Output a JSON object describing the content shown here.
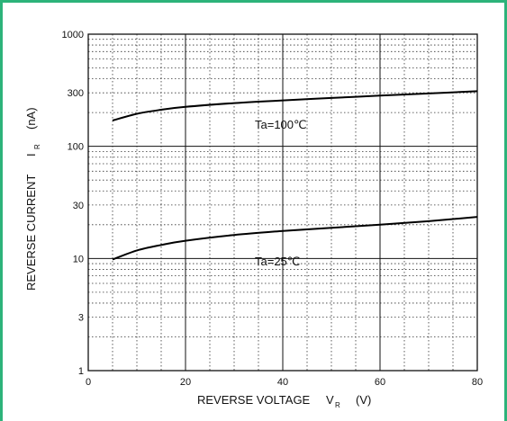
{
  "chart_data": {
    "type": "line",
    "title": "",
    "xlabel": "REVERSE VOLTAGE",
    "xlabel_sub": "R",
    "xlabel_prefix": "V",
    "xlabel_unit": "(V)",
    "ylabel": "REVERSE CURRENT",
    "ylabel_prefix": "I",
    "ylabel_sub": "R",
    "ylabel_unit": "(nA)",
    "xlim": [
      0,
      80
    ],
    "ylim": [
      1,
      1000
    ],
    "y_scale": "log",
    "x_ticks": [
      "0",
      "20",
      "40",
      "60",
      "80"
    ],
    "y_ticks": [
      "1",
      "3",
      "10",
      "30",
      "100",
      "300",
      "1000"
    ],
    "grid": true,
    "series": [
      {
        "name": "Ta=100℃",
        "x": [
          5,
          10,
          15,
          20,
          30,
          40,
          50,
          60,
          70,
          80
        ],
        "y": [
          170,
          195,
          212,
          225,
          243,
          257,
          270,
          283,
          296,
          310
        ]
      },
      {
        "name": "Ta=25℃",
        "x": [
          5,
          10,
          15,
          20,
          30,
          40,
          50,
          60,
          70,
          80
        ],
        "y": [
          9.8,
          11.8,
          13.2,
          14.4,
          16.2,
          17.6,
          18.8,
          20.0,
          21.5,
          23.5
        ]
      }
    ]
  }
}
